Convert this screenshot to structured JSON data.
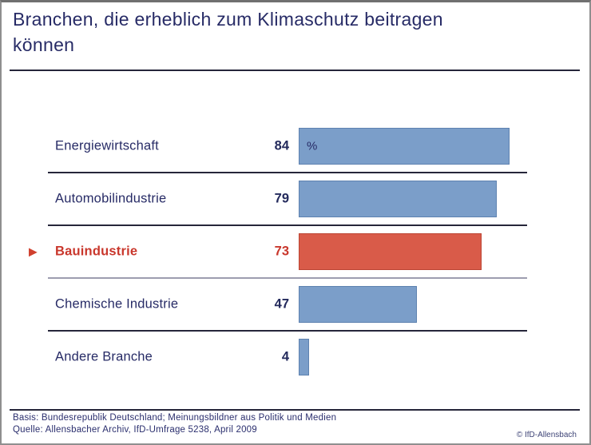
{
  "chart_data": {
    "type": "bar",
    "orientation": "horizontal",
    "title": "Branchen, die erheblich zum Klimaschutz beitragen können",
    "unit_label": "%",
    "categories": [
      "Energiewirtschaft",
      "Automobilindustrie",
      "Bauindustrie",
      "Chemische Industrie",
      "Andere Branche"
    ],
    "values": [
      84,
      79,
      73,
      47,
      4
    ],
    "highlight_index": 2,
    "highlighted_category": "Bauindustrie",
    "xlim": [
      0,
      100
    ],
    "grid": false,
    "legend": false,
    "bar_color": "#7b9ec9",
    "highlight_bar_color": "#d95b49",
    "label_color": "#272b66",
    "highlight_text_color": "#c9372c"
  },
  "icons": {
    "highlight_arrow": "▶"
  },
  "footer": {
    "basis": "Basis: Bundesrepublik Deutschland; Meinungsbildner aus Politik und Medien",
    "quelle": "Quelle: Allensbacher Archiv, IfD-Umfrage 5238, April 2009",
    "copyright": "© IfD-Allensbach"
  }
}
